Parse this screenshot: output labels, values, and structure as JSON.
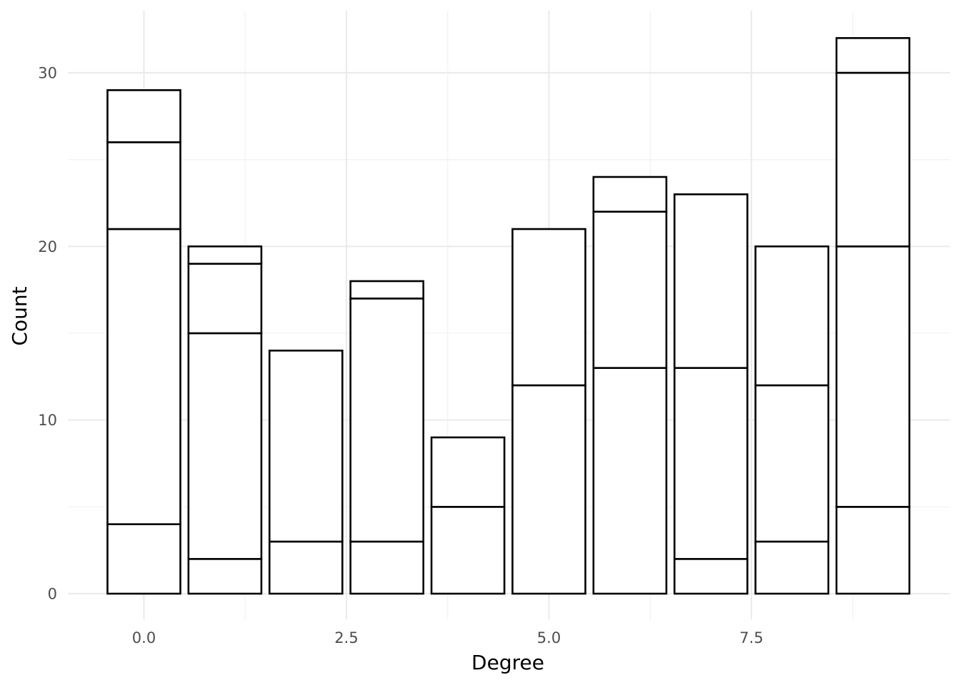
{
  "chart_data": {
    "type": "bar",
    "stacked": true,
    "title": "",
    "xlabel": "Degree",
    "ylabel": "Count",
    "xlim": [
      -0.5,
      9.5
    ],
    "ylim": [
      0,
      32
    ],
    "x_ticks": [
      0.0,
      2.5,
      5.0,
      7.5
    ],
    "x_tick_labels": [
      "0.0",
      "2.5",
      "5.0",
      "7.5"
    ],
    "y_ticks": [
      0,
      10,
      20,
      30
    ],
    "y_tick_labels": [
      "0",
      "10",
      "20",
      "30"
    ],
    "grid": true,
    "legend": "none",
    "bar_fill": "#ffffff",
    "bar_outline": "#000000",
    "x": [
      0,
      1,
      2,
      3,
      4,
      5,
      6,
      7,
      8,
      9
    ],
    "stacks": [
      [
        4,
        21,
        26,
        29
      ],
      [
        2,
        15,
        19,
        20
      ],
      [
        3,
        14
      ],
      [
        3,
        17,
        18
      ],
      [
        5,
        9
      ],
      [
        12,
        21
      ],
      [
        13,
        22,
        24
      ],
      [
        2,
        13,
        23
      ],
      [
        3,
        12,
        20
      ],
      [
        5,
        20,
        30,
        32
      ]
    ]
  }
}
